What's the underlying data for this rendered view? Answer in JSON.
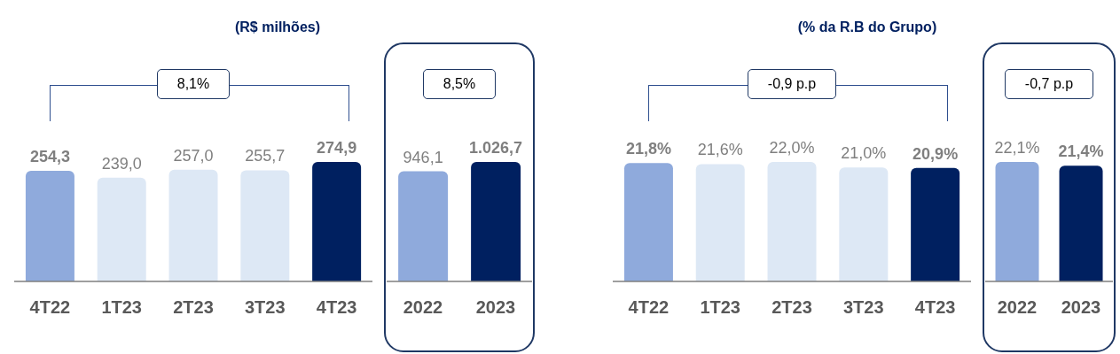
{
  "chart_data": [
    {
      "type": "bar",
      "title": "(R$ milhões)",
      "categories": [
        "4T22",
        "1T23",
        "2T23",
        "3T23",
        "4T23"
      ],
      "values": [
        254.3,
        239.0,
        257.0,
        255.7,
        274.9
      ],
      "colors": [
        "#8faadc",
        "#dde8f5",
        "#dde8f5",
        "#dde8f5",
        "#002060"
      ],
      "value_labels": [
        "254,3",
        "239,0",
        "257,0",
        "255,7",
        "274,9"
      ],
      "annotations": [
        "8,1%"
      ]
    },
    {
      "type": "bar",
      "categories": [
        "2022",
        "2023"
      ],
      "values": [
        946.1,
        1026.7
      ],
      "colors": [
        "#8faadc",
        "#002060"
      ],
      "value_labels": [
        "946,1",
        "1.026,7"
      ],
      "annotations": [
        "8,5%"
      ]
    },
    {
      "type": "bar",
      "title": "(% da R.B do Grupo)",
      "categories": [
        "4T22",
        "1T23",
        "2T23",
        "3T23",
        "4T23"
      ],
      "values": [
        21.8,
        21.6,
        22.0,
        21.0,
        20.9
      ],
      "colors": [
        "#8faadc",
        "#dde8f5",
        "#dde8f5",
        "#dde8f5",
        "#002060"
      ],
      "value_labels": [
        "21,8%",
        "21,6%",
        "22,0%",
        "21,0%",
        "20,9%"
      ],
      "annotations": [
        "-0,9 p.p"
      ]
    },
    {
      "type": "bar",
      "categories": [
        "2022",
        "2023"
      ],
      "values": [
        22.1,
        21.4
      ],
      "colors": [
        "#8faadc",
        "#002060"
      ],
      "value_labels": [
        "22,1%",
        "21,4%"
      ],
      "annotations": [
        "-0,7 p.p"
      ]
    }
  ]
}
